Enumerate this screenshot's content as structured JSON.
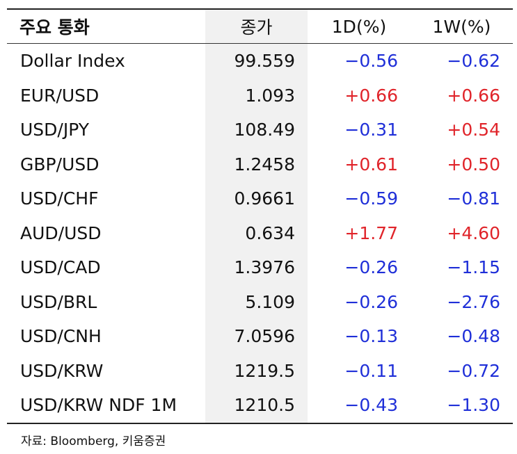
{
  "table": {
    "header": [
      "주요 통화",
      "종가",
      "1D(%)",
      "1W(%)"
    ],
    "rows": [
      [
        "Dollar Index",
        "99.559",
        "−0.56",
        "−0.62"
      ],
      [
        "EUR/USD",
        "1.093",
        "+0.66",
        "+0.66"
      ],
      [
        "USD/JPY",
        "108.49",
        "−0.31",
        "+0.54"
      ],
      [
        "GBP/USD",
        "1.2458",
        "+0.61",
        "+0.50"
      ],
      [
        "USD/CHF",
        "0.9661",
        "−0.59",
        "−0.81"
      ],
      [
        "AUD/USD",
        "0.634",
        "+1.77",
        "+4.60"
      ],
      [
        "USD/CAD",
        "1.3976",
        "−0.26",
        "−1.15"
      ],
      [
        "USD/BRL",
        "5.109",
        "−0.26",
        "−2.76"
      ],
      [
        "USD/CNH",
        "7.0596",
        "−0.13",
        "−0.48"
      ],
      [
        "USD/KRW",
        "1219.5",
        "−0.11",
        "−0.72"
      ],
      [
        "USD/KRW NDF 1M",
        "1210.5",
        "−0.43",
        "−1.30"
      ]
    ]
  },
  "source": "자료: Bloomberg, 키움증권"
}
